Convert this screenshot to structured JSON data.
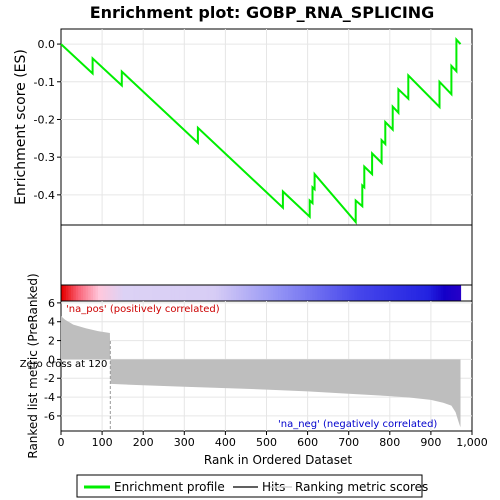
{
  "chart_data": {
    "type": "line",
    "title": "Enrichment plot: GOBP_RNA_SPLICING",
    "es_ylabel": "Enrichment score (ES)",
    "metric_ylabel": "Ranked list metric (PreRanked)",
    "xlabel": "Rank in Ordered Dataset",
    "x_ticks": [
      "0",
      "100",
      "200",
      "300",
      "400",
      "500",
      "600",
      "700",
      "800",
      "900",
      "1,000"
    ],
    "x_tick_values": [
      0,
      100,
      200,
      300,
      400,
      500,
      600,
      700,
      800,
      900,
      1000
    ],
    "xlim": [
      0,
      1000
    ],
    "es_ylim": [
      -0.48,
      0.04
    ],
    "es_y_ticks": [
      "0.0",
      "-0.1",
      "-0.2",
      "-0.3",
      "-0.4"
    ],
    "es_y_tick_values": [
      0.0,
      -0.1,
      -0.2,
      -0.3,
      -0.4
    ],
    "metric_ylim": [
      -7.6,
      6.2
    ],
    "metric_y_ticks": [
      "6",
      "4",
      "2",
      "0",
      "-2",
      "-4",
      "-6"
    ],
    "metric_y_tick_values": [
      6,
      4,
      2,
      0,
      -2,
      -4,
      -6
    ],
    "n_genes": 972,
    "zero_cross_rank": 120,
    "zero_cross_label": "Zero cross at 120",
    "pos_label": "'na_pos' (positively correlated)",
    "neg_label": "'na_neg' (negatively correlated)",
    "hits": [
      77,
      148,
      333,
      540,
      605,
      612,
      617,
      717,
      733,
      738,
      757,
      780,
      789,
      807,
      821,
      845,
      921,
      950,
      962
    ],
    "es_profile": {
      "x": [
        0,
        77,
        77,
        148,
        148,
        333,
        333,
        540,
        540,
        605,
        605,
        612,
        612,
        617,
        617,
        717,
        717,
        733,
        733,
        738,
        738,
        757,
        757,
        780,
        780,
        789,
        789,
        807,
        807,
        821,
        821,
        845,
        845,
        921,
        921,
        950,
        950,
        962,
        962,
        972
      ],
      "y": [
        0.0,
        -0.078,
        -0.038,
        -0.11,
        -0.073,
        -0.262,
        -0.222,
        -0.434,
        -0.391,
        -0.458,
        -0.415,
        -0.422,
        -0.38,
        -0.385,
        -0.345,
        -0.472,
        -0.415,
        -0.43,
        -0.375,
        -0.38,
        -0.325,
        -0.345,
        -0.29,
        -0.315,
        -0.255,
        -0.265,
        -0.207,
        -0.227,
        -0.166,
        -0.182,
        -0.12,
        -0.145,
        -0.083,
        -0.167,
        -0.1,
        -0.133,
        -0.058,
        -0.072,
        0.012,
        0.0
      ]
    },
    "metric_shape": {
      "x": [
        0,
        10,
        30,
        60,
        90,
        119,
        120,
        121,
        200,
        300,
        400,
        500,
        600,
        700,
        800,
        850,
        900,
        930,
        950,
        960,
        965,
        970,
        972
      ],
      "y": [
        4.6,
        4.2,
        3.7,
        3.3,
        3.0,
        2.8,
        0.0,
        -2.6,
        -2.75,
        -2.9,
        -3.05,
        -3.2,
        -3.4,
        -3.65,
        -3.9,
        -4.05,
        -4.3,
        -4.6,
        -4.9,
        -5.6,
        -6.3,
        -7.0,
        -7.2
      ]
    },
    "legend": [
      {
        "label": "Enrichment profile",
        "color": "#00ee00"
      },
      {
        "label": "Hits",
        "color": "#606060"
      },
      {
        "label": "Ranking metric scores",
        "color": "#d3d3d3"
      }
    ],
    "colors": {
      "es_line": "#00ee00",
      "hit": "#202020",
      "metric_fill": "#bebebe",
      "pos_text": "#cc0000",
      "neg_text": "#0000cc"
    },
    "grid": true,
    "legend_position": "bottom"
  }
}
